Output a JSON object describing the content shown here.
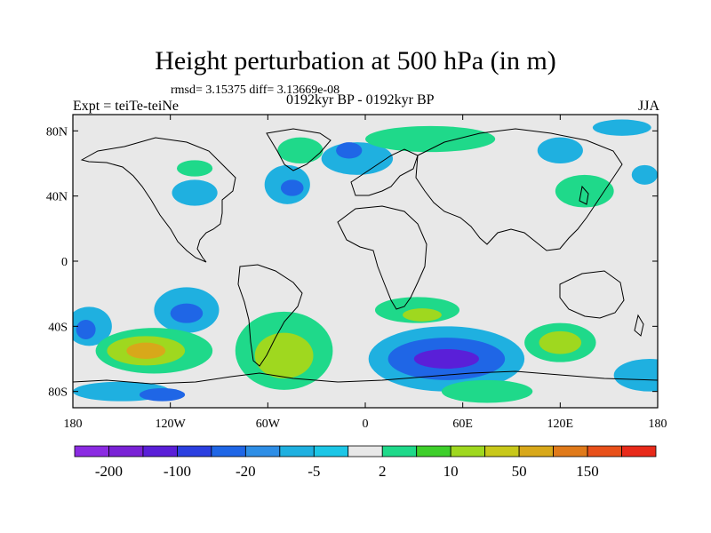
{
  "title": "Height perturbation at 500 hPa (in m)",
  "stats_line": "rmsd= 3.15375 diff= 3.13669e-08",
  "experiment": "Expt = teiTe-teiNe",
  "period": "0192kyr BP - 0192kyr BP",
  "season": "JJA",
  "map": {
    "projection": "cylindrical-equidistant",
    "lon_range": [
      -180,
      180
    ],
    "lat_range": [
      -90,
      90
    ],
    "lat_ticks": [
      {
        "value": 80,
        "label": "80N"
      },
      {
        "value": 40,
        "label": "40N"
      },
      {
        "value": 0,
        "label": "0"
      },
      {
        "value": -40,
        "label": "40S"
      },
      {
        "value": -80,
        "label": "80S"
      }
    ],
    "lon_ticks": [
      {
        "value": -180,
        "label": "180"
      },
      {
        "value": -120,
        "label": "120W"
      },
      {
        "value": -60,
        "label": "60W"
      },
      {
        "value": 0,
        "label": "0"
      },
      {
        "value": 60,
        "label": "60E"
      },
      {
        "value": 120,
        "label": "120E"
      },
      {
        "value": 180,
        "label": "180"
      }
    ],
    "background_color": "#e8e8e8"
  },
  "colorbar": {
    "colors": [
      "#8b2be2",
      "#7a22d6",
      "#5a1fd8",
      "#2b3fe0",
      "#1f66e6",
      "#2e8ee6",
      "#1fb0e0",
      "#1cc6e6",
      "#e8e8e8",
      "#1fd98a",
      "#3ecf2b",
      "#9fd81f",
      "#c8c81a",
      "#d8a81a",
      "#e07a1a",
      "#e8501a",
      "#e82a1a"
    ],
    "labels": [
      {
        "after_box": 1,
        "text": "-200"
      },
      {
        "after_box": 3,
        "text": "-100"
      },
      {
        "after_box": 5,
        "text": "-20"
      },
      {
        "after_box": 7,
        "text": "-5"
      },
      {
        "after_box": 9,
        "text": "2"
      },
      {
        "after_box": 11,
        "text": "10"
      },
      {
        "after_box": 13,
        "text": "50"
      },
      {
        "after_box": 15,
        "text": "150"
      }
    ]
  },
  "anomaly_regions": [
    {
      "lon": -105,
      "lat": 42,
      "rlon": 14,
      "rlat": 8,
      "level": "-5"
    },
    {
      "lon": -105,
      "lat": 57,
      "rlon": 11,
      "rlat": 5,
      "level": "2"
    },
    {
      "lon": -40,
      "lat": 68,
      "rlon": 14,
      "rlat": 8,
      "level": "2"
    },
    {
      "lon": -48,
      "lat": 47,
      "rlon": 14,
      "rlat": 12,
      "level": "-5"
    },
    {
      "lon": -45,
      "lat": 45,
      "rlon": 7,
      "rlat": 5,
      "level": "-20"
    },
    {
      "lon": -5,
      "lat": 63,
      "rlon": 22,
      "rlat": 10,
      "level": "-5"
    },
    {
      "lon": -10,
      "lat": 68,
      "rlon": 8,
      "rlat": 5,
      "level": "-20"
    },
    {
      "lon": 40,
      "lat": 75,
      "rlon": 40,
      "rlat": 8,
      "level": "2"
    },
    {
      "lon": 120,
      "lat": 68,
      "rlon": 14,
      "rlat": 8,
      "level": "-5"
    },
    {
      "lon": 158,
      "lat": 82,
      "rlon": 18,
      "rlat": 5,
      "level": "-5"
    },
    {
      "lon": 135,
      "lat": 43,
      "rlon": 18,
      "rlat": 10,
      "level": "2"
    },
    {
      "lon": 172,
      "lat": 53,
      "rlon": 8,
      "rlat": 6,
      "level": "-5"
    },
    {
      "lon": 32,
      "lat": -30,
      "rlon": 26,
      "rlat": 8,
      "level": "2"
    },
    {
      "lon": 35,
      "lat": -33,
      "rlon": 12,
      "rlat": 4,
      "level": "10"
    },
    {
      "lon": -110,
      "lat": -30,
      "rlon": 20,
      "rlat": 14,
      "level": "-5"
    },
    {
      "lon": -110,
      "lat": -32,
      "rlon": 10,
      "rlat": 6,
      "level": "-20"
    },
    {
      "lon": -170,
      "lat": -40,
      "rlon": 14,
      "rlat": 12,
      "level": "-5"
    },
    {
      "lon": -172,
      "lat": -42,
      "rlon": 6,
      "rlat": 6,
      "level": "-20"
    },
    {
      "lon": -130,
      "lat": -55,
      "rlon": 36,
      "rlat": 14,
      "level": "2"
    },
    {
      "lon": -135,
      "lat": -55,
      "rlon": 24,
      "rlat": 9,
      "level": "10"
    },
    {
      "lon": -135,
      "lat": -55,
      "rlon": 12,
      "rlat": 5,
      "level": "50"
    },
    {
      "lon": -50,
      "lat": -55,
      "rlon": 30,
      "rlat": 24,
      "level": "2"
    },
    {
      "lon": -50,
      "lat": -58,
      "rlon": 18,
      "rlat": 14,
      "level": "10"
    },
    {
      "lon": 50,
      "lat": -60,
      "rlon": 48,
      "rlat": 20,
      "level": "-5"
    },
    {
      "lon": 50,
      "lat": -60,
      "rlon": 36,
      "rlat": 13,
      "level": "-20"
    },
    {
      "lon": 50,
      "lat": -60,
      "rlon": 20,
      "rlat": 6,
      "level": "-100"
    },
    {
      "lon": 120,
      "lat": -50,
      "rlon": 22,
      "rlat": 12,
      "level": "2"
    },
    {
      "lon": 120,
      "lat": -50,
      "rlon": 13,
      "rlat": 7,
      "level": "10"
    },
    {
      "lon": 75,
      "lat": -80,
      "rlon": 28,
      "rlat": 7,
      "level": "2"
    },
    {
      "lon": 175,
      "lat": -70,
      "rlon": 22,
      "rlat": 10,
      "level": "-5"
    },
    {
      "lon": -150,
      "lat": -80,
      "rlon": 30,
      "rlat": 6,
      "level": "-5"
    },
    {
      "lon": -125,
      "lat": -82,
      "rlon": 14,
      "rlat": 4,
      "level": "-20"
    }
  ]
}
